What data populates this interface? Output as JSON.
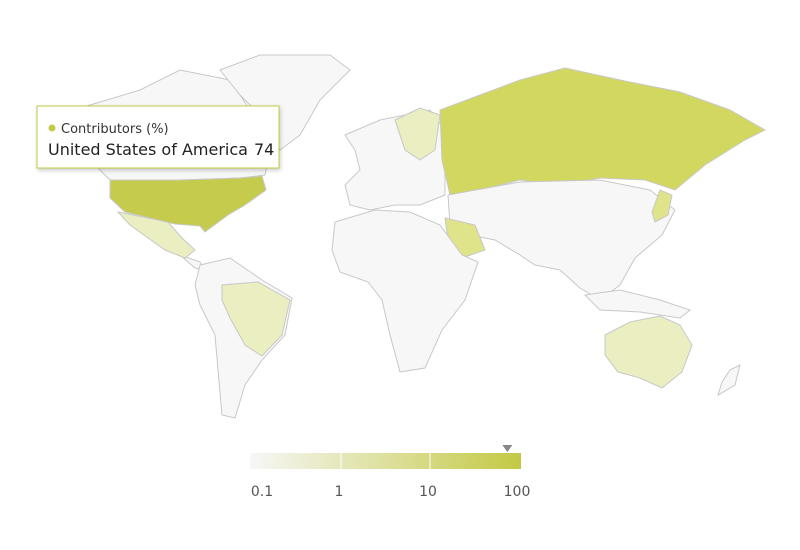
{
  "chart_data": {
    "type": "map",
    "series": [
      {
        "name": "Contributors (%)",
        "color": "#c4ca45"
      }
    ],
    "tooltip": {
      "point": "United States of America",
      "value": 74
    },
    "color_axis": {
      "log": true,
      "lim": [
        0.1,
        100
      ],
      "ticks": [
        0.1,
        1,
        10,
        100
      ],
      "min_color": "#f7f7f7",
      "max_color": "#c3c944"
    }
  }
}
